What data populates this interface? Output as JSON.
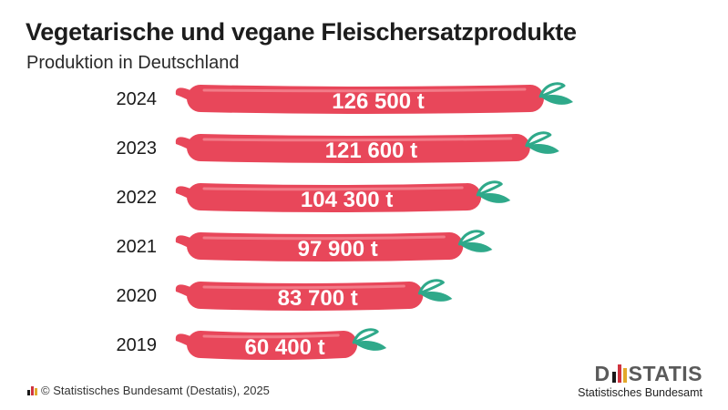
{
  "header": {
    "title": "Vegetarische und vegane Fleischersatzprodukte",
    "subtitle": "Produktion in Deutschland"
  },
  "footer": {
    "source": "© Statistisches Bundesamt (Destatis), 2025",
    "brand_name": "DESTATIS",
    "brand_subtitle": "Statistisches Bundesamt"
  },
  "colors": {
    "sausage": "#e8475a",
    "sausage_highlight": "#f27b88",
    "sausage_shadow": "#c93548",
    "leaf": "#2fa98a",
    "label": "#ffffff",
    "logo_black": "#1a1a1a",
    "logo_red": "#d0343f",
    "logo_gold": "#e2a82b"
  },
  "chart_data": {
    "type": "bar",
    "orientation": "horizontal",
    "categories": [
      "2024",
      "2023",
      "2022",
      "2021",
      "2020",
      "2019"
    ],
    "values": [
      126500,
      121600,
      104300,
      97900,
      83700,
      60400
    ],
    "value_labels": [
      "126 500 t",
      "121 600 t",
      "104 300 t",
      "97 900 t",
      "83 700 t",
      "60 400 t"
    ],
    "unit": "t",
    "title": "Vegetarische und vegane Fleischersatzprodukte",
    "subtitle": "Produktion in Deutschland",
    "xlabel": "",
    "ylabel": "",
    "grid": false,
    "legend": "none"
  }
}
